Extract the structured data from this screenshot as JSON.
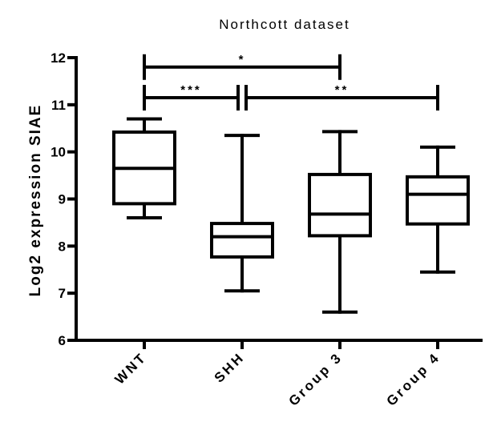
{
  "chart_data": {
    "type": "box",
    "title": "Northcott dataset",
    "xlabel": "",
    "ylabel": "Log2 expression SIAE",
    "ylim": [
      6,
      12
    ],
    "yticks": [
      "6",
      "7",
      "8",
      "9",
      "10",
      "11",
      "12"
    ],
    "categories": [
      "WNT",
      "SHH",
      "Group 3",
      "Group 4"
    ],
    "boxes": [
      {
        "category": "WNT",
        "min": 8.6,
        "q1": 8.9,
        "median": 9.65,
        "q3": 10.42,
        "max": 10.7
      },
      {
        "category": "SHH",
        "min": 7.05,
        "q1": 7.77,
        "median": 8.2,
        "q3": 8.48,
        "max": 10.35
      },
      {
        "category": "Group 3",
        "min": 6.6,
        "q1": 8.22,
        "median": 8.68,
        "q3": 9.52,
        "max": 10.43
      },
      {
        "category": "Group 4",
        "min": 7.45,
        "q1": 8.47,
        "median": 9.1,
        "q3": 9.47,
        "max": 10.1
      }
    ],
    "significance": [
      {
        "from": "WNT",
        "to": "Group 3",
        "label": "*",
        "y": 11.8
      },
      {
        "from": "WNT",
        "to": "SHH",
        "label": "***",
        "y": 11.15
      },
      {
        "from": "SHH",
        "to": "Group 4",
        "label": "**",
        "y": 11.15
      }
    ],
    "grid": false,
    "legend": "none"
  }
}
